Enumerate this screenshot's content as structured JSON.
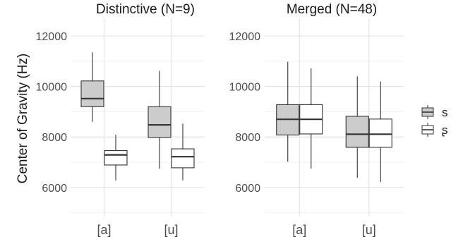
{
  "chart_data": {
    "type": "boxplot",
    "ylabel": "Center of Gravity (Hz)",
    "ylim": [
      4850,
      12700
    ],
    "yticks": [
      6000,
      8000,
      10000,
      12000
    ],
    "categories": [
      "[a]",
      "[u]"
    ],
    "grid": true,
    "legend": {
      "position": "right",
      "entries": [
        {
          "label": "s",
          "fill": "#cccccc"
        },
        {
          "label": "ʂ",
          "fill": "#ffffff"
        }
      ]
    },
    "panels": [
      {
        "title": "Distinctive (N=9)",
        "groups": [
          {
            "category": "[a]",
            "boxes": [
              {
                "series": "s",
                "min": 8600,
                "q1": 9200,
                "median": 9520,
                "q3": 10220,
                "max": 11350
              },
              {
                "series": "ʂ",
                "min": 6280,
                "q1": 6890,
                "median": 7290,
                "q3": 7460,
                "max": 8090
              }
            ]
          },
          {
            "category": "[u]",
            "boxes": [
              {
                "series": "s",
                "min": 6740,
                "q1": 7980,
                "median": 8480,
                "q3": 9200,
                "max": 10620
              },
              {
                "series": "ʂ",
                "min": 6280,
                "q1": 6780,
                "median": 7220,
                "q3": 7530,
                "max": 8530
              }
            ]
          }
        ]
      },
      {
        "title": "Merged (N=48)",
        "groups": [
          {
            "category": "[a]",
            "boxes": [
              {
                "series": "s",
                "min": 7020,
                "q1": 8080,
                "median": 8700,
                "q3": 9280,
                "max": 10980
              },
              {
                "series": "ʂ",
                "min": 6740,
                "q1": 8120,
                "median": 8700,
                "q3": 9280,
                "max": 10720
              }
            ]
          },
          {
            "category": "[u]",
            "boxes": [
              {
                "series": "s",
                "min": 6380,
                "q1": 7590,
                "median": 8110,
                "q3": 8820,
                "max": 10400
              },
              {
                "series": "ʂ",
                "min": 6220,
                "q1": 7590,
                "median": 8110,
                "q3": 8710,
                "max": 10200
              }
            ]
          }
        ]
      }
    ]
  },
  "colors": {
    "grid_major": "#e4e4e4",
    "grid_minor": "#f0f0f0",
    "axis_text": "#4d4d4d",
    "title_text": "#1a1a1a",
    "box_stroke": "#333333"
  }
}
